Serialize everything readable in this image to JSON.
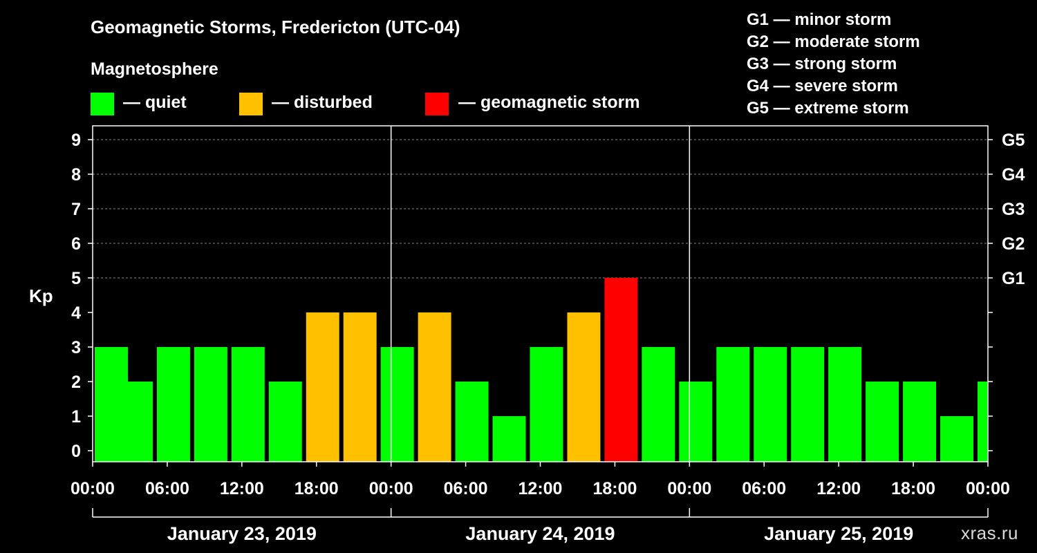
{
  "colors": {
    "background": "#000000",
    "quiet": "#00ff00",
    "disturbed": "#ffc000",
    "storm": "#ff0000",
    "grid": "#888888",
    "axis": "#ffffff"
  },
  "chart_data": {
    "type": "bar",
    "title": "Geomagnetic Storms, Fredericton (UTC-04)",
    "subtitle": "Magnetosphere",
    "ylabel": "Kp",
    "ylim": [
      0,
      9
    ],
    "y_ticks": [
      "0",
      "1",
      "2",
      "3",
      "4",
      "5",
      "6",
      "7",
      "8",
      "9"
    ],
    "y2_ticks": [
      {
        "kp": 5,
        "label": "G1"
      },
      {
        "kp": 6,
        "label": "G2"
      },
      {
        "kp": 7,
        "label": "G3"
      },
      {
        "kp": 8,
        "label": "G4"
      },
      {
        "kp": 9,
        "label": "G5"
      }
    ],
    "x_range_hours": [
      0,
      72
    ],
    "x_ticks": [
      {
        "hour": 0,
        "label": "00:00"
      },
      {
        "hour": 6,
        "label": "06:00"
      },
      {
        "hour": 12,
        "label": "12:00"
      },
      {
        "hour": 18,
        "label": "18:00"
      },
      {
        "hour": 24,
        "label": "00:00"
      },
      {
        "hour": 30,
        "label": "06:00"
      },
      {
        "hour": 36,
        "label": "12:00"
      },
      {
        "hour": 42,
        "label": "18:00"
      },
      {
        "hour": 48,
        "label": "00:00"
      },
      {
        "hour": 54,
        "label": "06:00"
      },
      {
        "hour": 60,
        "label": "12:00"
      },
      {
        "hour": 66,
        "label": "18:00"
      },
      {
        "hour": 72,
        "label": "00:00"
      }
    ],
    "days": [
      {
        "label": "January 23, 2019",
        "start_hour": 0,
        "end_hour": 24
      },
      {
        "label": "January 24, 2019",
        "start_hour": 24,
        "end_hour": 48
      },
      {
        "label": "January 25, 2019",
        "start_hour": 48,
        "end_hour": 72
      }
    ],
    "bars": [
      {
        "start_hour": 0,
        "kp": 3,
        "status": "quiet"
      },
      {
        "start_hour": 2,
        "kp": 2,
        "status": "quiet"
      },
      {
        "start_hour": 5,
        "kp": 3,
        "status": "quiet"
      },
      {
        "start_hour": 8,
        "kp": 3,
        "status": "quiet"
      },
      {
        "start_hour": 11,
        "kp": 3,
        "status": "quiet"
      },
      {
        "start_hour": 14,
        "kp": 2,
        "status": "quiet"
      },
      {
        "start_hour": 17,
        "kp": 4,
        "status": "disturbed"
      },
      {
        "start_hour": 20,
        "kp": 4,
        "status": "disturbed"
      },
      {
        "start_hour": 23,
        "kp": 3,
        "status": "quiet"
      },
      {
        "start_hour": 26,
        "kp": 4,
        "status": "disturbed"
      },
      {
        "start_hour": 29,
        "kp": 2,
        "status": "quiet"
      },
      {
        "start_hour": 32,
        "kp": 1,
        "status": "quiet"
      },
      {
        "start_hour": 35,
        "kp": 3,
        "status": "quiet"
      },
      {
        "start_hour": 38,
        "kp": 4,
        "status": "disturbed"
      },
      {
        "start_hour": 41,
        "kp": 5,
        "status": "storm"
      },
      {
        "start_hour": 44,
        "kp": 3,
        "status": "quiet"
      },
      {
        "start_hour": 47,
        "kp": 2,
        "status": "quiet"
      },
      {
        "start_hour": 50,
        "kp": 3,
        "status": "quiet"
      },
      {
        "start_hour": 53,
        "kp": 3,
        "status": "quiet"
      },
      {
        "start_hour": 56,
        "kp": 3,
        "status": "quiet"
      },
      {
        "start_hour": 59,
        "kp": 3,
        "status": "quiet"
      },
      {
        "start_hour": 62,
        "kp": 2,
        "status": "quiet"
      },
      {
        "start_hour": 65,
        "kp": 2,
        "status": "quiet"
      },
      {
        "start_hour": 68,
        "kp": 1,
        "status": "quiet"
      },
      {
        "start_hour": 71,
        "kp": 2,
        "status": "quiet"
      }
    ],
    "bar_duration_hours": 3,
    "legend": [
      {
        "status": "quiet",
        "label": "— quiet"
      },
      {
        "status": "disturbed",
        "label": "— disturbed"
      },
      {
        "status": "storm",
        "label": "— geomagnetic storm"
      }
    ],
    "g_scale": [
      "G1 — minor storm",
      "G2 — moderate storm",
      "G3 — strong storm",
      "G4 — severe storm",
      "G5 — extreme storm"
    ]
  },
  "watermark": "xras.ru"
}
